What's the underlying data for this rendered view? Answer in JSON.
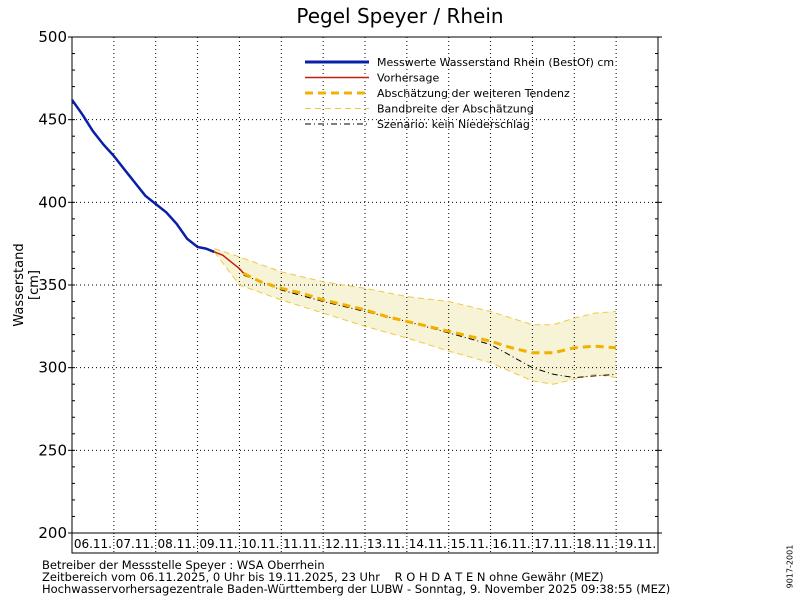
{
  "chart_data": {
    "type": "line",
    "title": "Pegel Speyer / Rhein",
    "ylabel": "Wasserstand [cm]",
    "xlabel": "",
    "ylim": [
      200,
      500
    ],
    "yticks": [
      200,
      250,
      300,
      350,
      400,
      450,
      500
    ],
    "x_categories": [
      "06.11.",
      "07.11.",
      "08.11.",
      "09.11.",
      "10.11.",
      "11.11.",
      "12.11.",
      "13.11.",
      "14.11.",
      "15.11.",
      "16.11.",
      "17.11.",
      "18.11.",
      "19.11."
    ],
    "x_unit": "days since 06.11.2025 00:00",
    "grid": true,
    "legend_position": "top-right",
    "legend": [
      {
        "label": "Messwerte Wasserstand Rhein (BestOf)  cm",
        "color": "#0a1fa8",
        "style": "solid-thick"
      },
      {
        "label": "Vorhersage",
        "color": "#c0200f",
        "style": "solid"
      },
      {
        "label": "Abschätzung der weiteren Tendenz",
        "color": "#f2b000",
        "style": "dashed-thick"
      },
      {
        "label": "Bandbreite der Abschätzung",
        "color": "#f2c840",
        "style": "dashed-thin"
      },
      {
        "label": "Szenario: kein Niederschlag",
        "color": "#000000",
        "style": "dash-dot"
      }
    ],
    "series": [
      {
        "name": "Messwerte Wasserstand Rhein (BestOf)  cm",
        "color": "#0a1fa8",
        "x": [
          0,
          0.25,
          0.5,
          0.75,
          1.0,
          1.25,
          1.5,
          1.75,
          2.0,
          2.25,
          2.5,
          2.75,
          3.0,
          3.2,
          3.4
        ],
        "y": [
          462,
          453,
          443,
          435,
          428,
          420,
          412,
          404,
          399,
          394,
          387,
          378,
          373,
          372,
          370
        ]
      },
      {
        "name": "Vorhersage",
        "color": "#c0200f",
        "x": [
          3.4,
          3.6,
          3.8,
          4.0,
          4.1
        ],
        "y": [
          370,
          368,
          364,
          360,
          357
        ]
      },
      {
        "name": "Abschätzung der weiteren Tendenz",
        "color": "#f2b000",
        "x": [
          4.1,
          4.5,
          5.0,
          5.5,
          6.0,
          6.5,
          7.0,
          7.5,
          8.0,
          8.5,
          9.0,
          9.5,
          10.0,
          10.5,
          11.0,
          11.5,
          12.0,
          12.5,
          13.0
        ],
        "y": [
          357,
          352,
          348,
          345,
          341,
          338,
          335,
          331,
          328,
          325,
          322,
          319,
          316,
          312,
          309,
          309,
          312,
          313,
          312
        ]
      },
      {
        "name": "Bandbreite der Abschätzung (oben)",
        "color": "#f2c840",
        "x": [
          3.4,
          4.0,
          5.0,
          6.0,
          7.0,
          8.0,
          9.0,
          10.0,
          11.0,
          11.5,
          12.0,
          12.5,
          13.0
        ],
        "y": [
          372,
          367,
          358,
          352,
          348,
          343,
          340,
          334,
          326,
          326,
          330,
          333,
          334
        ]
      },
      {
        "name": "Bandbreite der Abschätzung (unten)",
        "color": "#f2c840",
        "x": [
          3.4,
          4.0,
          5.0,
          6.0,
          7.0,
          8.0,
          9.0,
          10.0,
          11.0,
          11.5,
          12.0,
          12.5,
          13.0
        ],
        "y": [
          370,
          350,
          341,
          333,
          325,
          318,
          310,
          303,
          292,
          290,
          293,
          296,
          294
        ]
      },
      {
        "name": "Szenario: kein Niederschlag",
        "color": "#000000",
        "x": [
          4.1,
          5.0,
          6.0,
          7.0,
          8.0,
          9.0,
          10.0,
          10.5,
          11.0,
          11.5,
          12.0,
          12.5,
          13.0
        ],
        "y": [
          356,
          347,
          340,
          334,
          328,
          321,
          314,
          307,
          300,
          296,
          294,
          295,
          296
        ]
      }
    ]
  },
  "side_code": "9017-2001",
  "footer": {
    "line1": "Betreiber der Messstelle Speyer : WSA Oberrhein",
    "line2": "Zeitbereich vom 06.11.2025, 0 Uhr bis 19.11.2025, 23 Uhr    R O H D A T E N ohne Gewähr (MEZ)",
    "line3": "Hochwasservorhersagezentrale Baden-Württemberg der LUBW - Sonntag, 9. November 2025 09:38:55 (MEZ)"
  }
}
